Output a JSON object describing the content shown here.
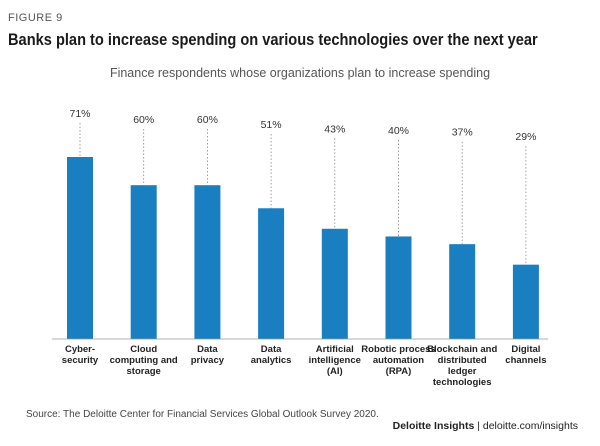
{
  "figure_label": "FIGURE 9",
  "footer": {
    "source": "Source: The Deloitte Center for Financial Services Global Outlook Survey 2020.",
    "brand": "Deloitte Insights",
    "separator": " | ",
    "url": "deloitte.com/insights"
  },
  "chart_data": {
    "type": "bar",
    "title": "Banks plan to increase spending on various technologies over the next year",
    "subtitle": "Finance respondents whose organizations plan to increase spending",
    "categories": [
      "Cyber-\nsecurity",
      "Cloud\ncomputing and\nstorage",
      "Data\nprivacy",
      "Data\nanalytics",
      "Artificial\nintelligence\n(AI)",
      "Robotic process\nautomation\n(RPA)",
      "Blockchain and\ndistributed\nledger\ntechnologies",
      "Digital\nchannels"
    ],
    "values": [
      71,
      60,
      60,
      51,
      43,
      40,
      37,
      29
    ],
    "value_labels": [
      "71%",
      "60%",
      "60%",
      "51%",
      "43%",
      "40%",
      "37%",
      "29%"
    ],
    "unit": "%",
    "ylim": [
      0,
      71
    ],
    "bar_color": "#1a7fc0",
    "grid": false,
    "legend": "none"
  }
}
